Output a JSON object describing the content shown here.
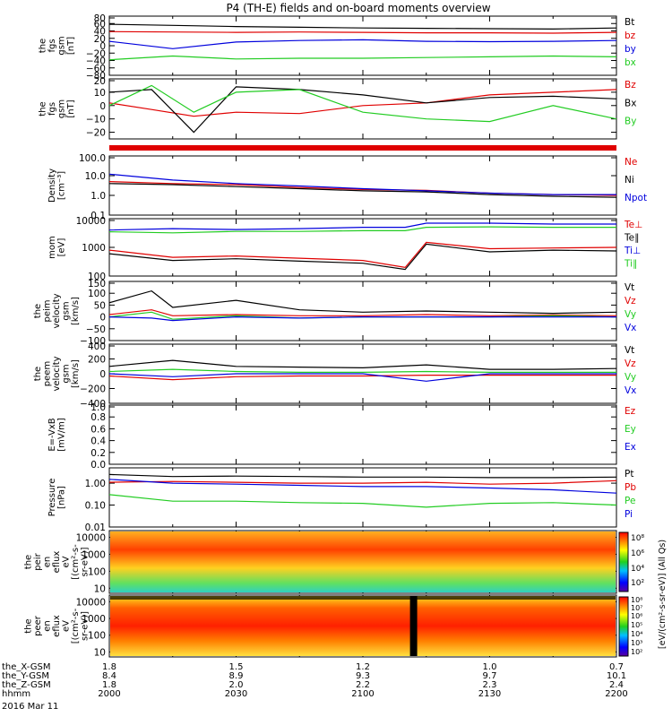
{
  "title": "P4 (TH-E) fields and on-board moments overview",
  "footer": {
    "rows": [
      {
        "label": "the_X-GSM",
        "values": [
          "1.8",
          "1.5",
          "1.2",
          "1.0",
          "0.7"
        ]
      },
      {
        "label": "the_Y-GSM",
        "values": [
          "8.4",
          "8.9",
          "9.3",
          "9.7",
          "10.1"
        ]
      },
      {
        "label": "the_Z-GSM",
        "values": [
          "1.8",
          "2.0",
          "2.2",
          "2.3",
          "2.4"
        ]
      },
      {
        "label": "hhmm",
        "values": [
          "2000",
          "2030",
          "2100",
          "2130",
          "2200"
        ]
      }
    ],
    "date": "2016 Mar 11"
  },
  "colorbar_label": "[eV/(cm²-s-sr-eV)] (All Qs)",
  "colorbar_ticks": [
    "10⁸",
    "10⁶",
    "10⁴",
    "10²",
    "10⁸",
    "10⁷",
    "10⁶",
    "10⁵",
    "10⁴",
    "10³",
    "10²"
  ],
  "colors": {
    "black": "#000000",
    "red": "#e00000",
    "green": "#22cc22",
    "blue": "#0000dd"
  },
  "chart_data": [
    {
      "type": "line",
      "ylabel": [
        "the",
        "fgs",
        "gsm",
        "[nT]"
      ],
      "yticks": [
        "80",
        "60",
        "40",
        "20",
        "0",
        "−20",
        "−40",
        "−60",
        "−80"
      ],
      "ylim": [
        -80,
        80
      ],
      "legend": [
        "Bt",
        "bz",
        "by",
        "bx"
      ],
      "series": [
        {
          "name": "Bt",
          "color": "black",
          "x": [
            2000,
            2015,
            2030,
            2045,
            2100,
            2115,
            2130,
            2145,
            2200
          ],
          "y": [
            58,
            55,
            52,
            50,
            48,
            47,
            46,
            45,
            48
          ]
        },
        {
          "name": "bz",
          "color": "red",
          "x": [
            2000,
            2015,
            2030,
            2045,
            2100,
            2115,
            2130,
            2145,
            2200
          ],
          "y": [
            38,
            37,
            36,
            37,
            36,
            35,
            35,
            34,
            36
          ]
        },
        {
          "name": "by",
          "color": "blue",
          "x": [
            2000,
            2015,
            2030,
            2045,
            2100,
            2115,
            2130,
            2145,
            2200
          ],
          "y": [
            12,
            -8,
            10,
            14,
            16,
            12,
            11,
            12,
            14
          ]
        },
        {
          "name": "bx",
          "color": "green",
          "x": [
            2000,
            2015,
            2030,
            2045,
            2100,
            2115,
            2130,
            2145,
            2200
          ],
          "y": [
            -38,
            -28,
            -36,
            -34,
            -34,
            -32,
            -30,
            -28,
            -30
          ]
        }
      ]
    },
    {
      "type": "line",
      "ylabel": [
        "the",
        "fgs",
        "gsm",
        "[nT]"
      ],
      "yticks": [
        "20",
        "10",
        "0",
        "−10",
        "−20"
      ],
      "ylim": [
        -25,
        20
      ],
      "legend": [
        "Bz",
        "Bx",
        "By"
      ],
      "series": [
        {
          "name": "Bz",
          "color": "red",
          "x": [
            2000,
            2010,
            2020,
            2030,
            2045,
            2100,
            2115,
            2130,
            2145,
            2200
          ],
          "y": [
            2,
            -3,
            -8,
            -5,
            -6,
            0,
            2,
            8,
            10,
            12
          ]
        },
        {
          "name": "Bx",
          "color": "black",
          "x": [
            2000,
            2010,
            2020,
            2030,
            2045,
            2100,
            2115,
            2130,
            2145,
            2200
          ],
          "y": [
            10,
            12,
            -20,
            14,
            12,
            8,
            2,
            6,
            7,
            5
          ]
        },
        {
          "name": "By",
          "color": "green",
          "x": [
            2000,
            2010,
            2020,
            2030,
            2045,
            2100,
            2115,
            2130,
            2145,
            2200
          ],
          "y": [
            0,
            15,
            -5,
            10,
            12,
            -5,
            -10,
            -12,
            0,
            -10
          ]
        }
      ]
    },
    {
      "type": "line",
      "ylabel": [
        "Density",
        "[cm⁻³]"
      ],
      "yticks": [
        "100.0",
        "10.0",
        "1.0",
        "0.1"
      ],
      "ylim": [
        0.1,
        100
      ],
      "log": true,
      "legend": [
        "Ne",
        "Ni",
        "Npot"
      ],
      "series": [
        {
          "name": "Ne",
          "color": "red",
          "x": [
            2000,
            2015,
            2030,
            2045,
            2100,
            2115,
            2130,
            2145,
            2200
          ],
          "y": [
            5,
            4,
            3.5,
            2.5,
            2,
            1.8,
            1.3,
            1.1,
            1
          ]
        },
        {
          "name": "Ni",
          "color": "black",
          "x": [
            2000,
            2015,
            2030,
            2045,
            2100,
            2115,
            2130,
            2145,
            2200
          ],
          "y": [
            4,
            3.5,
            2.8,
            2.2,
            1.7,
            1.5,
            1.1,
            0.9,
            0.8
          ]
        },
        {
          "name": "Npot",
          "color": "blue",
          "x": [
            2000,
            2015,
            2030,
            2045,
            2100,
            2115,
            2130,
            2145,
            2200
          ],
          "y": [
            12,
            6,
            4,
            3,
            2.2,
            1.7,
            1.3,
            1.1,
            1.1
          ]
        }
      ]
    },
    {
      "type": "line",
      "ylabel": [
        "mom",
        "[eV]"
      ],
      "yticks": [
        "10000",
        "1000",
        "100"
      ],
      "ylim": [
        100,
        10000
      ],
      "log": true,
      "legend": [
        "Te⊥",
        "Te∥",
        "Ti⊥",
        "Ti∥"
      ],
      "series": [
        {
          "name": "Te⊥",
          "color": "red",
          "x": [
            2000,
            2015,
            2030,
            2045,
            2100,
            2110,
            2115,
            2130,
            2145,
            2200
          ],
          "y": [
            800,
            450,
            500,
            420,
            350,
            200,
            1500,
            900,
            950,
            1000
          ]
        },
        {
          "name": "Te∥",
          "color": "black",
          "x": [
            2000,
            2015,
            2030,
            2045,
            2100,
            2110,
            2115,
            2130,
            2145,
            2200
          ],
          "y": [
            600,
            350,
            400,
            330,
            280,
            170,
            1300,
            700,
            800,
            750
          ]
        },
        {
          "name": "Ti⊥",
          "color": "blue",
          "x": [
            2000,
            2015,
            2030,
            2045,
            2100,
            2110,
            2115,
            2130,
            2145,
            2200
          ],
          "y": [
            4000,
            4500,
            4200,
            4500,
            5000,
            5000,
            7000,
            7000,
            6500,
            6500
          ]
        },
        {
          "name": "Ti∥",
          "color": "green",
          "x": [
            2000,
            2015,
            2030,
            2045,
            2100,
            2110,
            2115,
            2130,
            2145,
            2200
          ],
          "y": [
            3500,
            3200,
            3600,
            3600,
            3800,
            3800,
            5000,
            5200,
            5000,
            5000
          ]
        }
      ]
    },
    {
      "type": "line",
      "ylabel": [
        "the",
        "peim",
        "velocity",
        "gsm",
        "[km/s]"
      ],
      "yticks": [
        "150",
        "100",
        "50",
        "0",
        "−50",
        "−100"
      ],
      "ylim": [
        -100,
        150
      ],
      "legend": [
        "Vt",
        "Vz",
        "Vy",
        "Vx"
      ],
      "series": [
        {
          "name": "Vt",
          "color": "black",
          "x": [
            2000,
            2010,
            2015,
            2030,
            2045,
            2100,
            2115,
            2130,
            2145,
            2200
          ],
          "y": [
            60,
            110,
            40,
            70,
            30,
            20,
            25,
            20,
            15,
            20
          ]
        },
        {
          "name": "Vz",
          "color": "red",
          "x": [
            2000,
            2010,
            2015,
            2030,
            2045,
            2100,
            2115,
            2130,
            2145,
            2200
          ],
          "y": [
            10,
            30,
            5,
            10,
            5,
            5,
            10,
            5,
            8,
            5
          ]
        },
        {
          "name": "Vy",
          "color": "green",
          "x": [
            2000,
            2010,
            2015,
            2030,
            2045,
            2100,
            2115,
            2130,
            2145,
            2200
          ],
          "y": [
            0,
            20,
            -10,
            5,
            -5,
            0,
            0,
            0,
            5,
            0
          ]
        },
        {
          "name": "Vx",
          "color": "blue",
          "x": [
            2000,
            2010,
            2015,
            2030,
            2045,
            2100,
            2115,
            2130,
            2145,
            2200
          ],
          "y": [
            0,
            -5,
            -15,
            0,
            -5,
            0,
            0,
            0,
            0,
            0
          ]
        }
      ]
    },
    {
      "type": "line",
      "ylabel": [
        "the",
        "peem",
        "velocity",
        "gsm",
        "[km/s]"
      ],
      "yticks": [
        "400",
        "200",
        "0",
        "−200",
        "−400"
      ],
      "ylim": [
        -400,
        400
      ],
      "legend": [
        "Vt",
        "Vz",
        "Vy",
        "Vx"
      ],
      "series": [
        {
          "name": "Vt",
          "color": "black",
          "x": [
            2000,
            2015,
            2030,
            2045,
            2100,
            2115,
            2130,
            2145,
            2200
          ],
          "y": [
            100,
            180,
            100,
            90,
            80,
            120,
            60,
            60,
            70
          ]
        },
        {
          "name": "Vz",
          "color": "red",
          "x": [
            2000,
            2015,
            2030,
            2045,
            2100,
            2115,
            2130,
            2145,
            2200
          ],
          "y": [
            -30,
            -80,
            -40,
            -30,
            -30,
            -20,
            -20,
            -20,
            -20
          ]
        },
        {
          "name": "Vy",
          "color": "green",
          "x": [
            2000,
            2015,
            2030,
            2045,
            2100,
            2115,
            2130,
            2145,
            2200
          ],
          "y": [
            30,
            60,
            30,
            20,
            20,
            30,
            20,
            20,
            20
          ]
        },
        {
          "name": "Vx",
          "color": "blue",
          "x": [
            2000,
            2015,
            2030,
            2045,
            2100,
            2115,
            2130,
            2145,
            2200
          ],
          "y": [
            0,
            -40,
            0,
            0,
            0,
            -100,
            0,
            0,
            0
          ]
        }
      ]
    },
    {
      "type": "line",
      "ylabel": [
        "E=-VxB",
        "[mV/m]"
      ],
      "yticks": [
        "1.0",
        "0.8",
        "0.6",
        "0.4",
        "0.2",
        "0.0"
      ],
      "ylim": [
        0,
        1
      ],
      "legend": [
        "Ez",
        "Ey",
        "Ex"
      ],
      "series": []
    },
    {
      "type": "line",
      "ylabel": [
        "Pressure",
        "[nPa]"
      ],
      "yticks": [
        "1.00",
        "0.10",
        "0.01"
      ],
      "ylim": [
        0.01,
        5
      ],
      "log": true,
      "legend": [
        "Pt",
        "Pb",
        "Pe",
        "Pi"
      ],
      "series": [
        {
          "name": "Pt",
          "color": "black",
          "x": [
            2000,
            2015,
            2030,
            2045,
            2100,
            2115,
            2130,
            2145,
            2200
          ],
          "y": [
            2.5,
            2.0,
            2.1,
            2.0,
            1.9,
            1.9,
            1.8,
            1.8,
            1.9
          ]
        },
        {
          "name": "Pb",
          "color": "red",
          "x": [
            2000,
            2015,
            2030,
            2045,
            2100,
            2115,
            2130,
            2145,
            2200
          ],
          "y": [
            1.1,
            1.2,
            1.1,
            1.0,
            1.0,
            1.1,
            0.9,
            1.0,
            1.3
          ]
        },
        {
          "name": "Pe",
          "color": "green",
          "x": [
            2000,
            2015,
            2030,
            2045,
            2100,
            2115,
            2130,
            2145,
            2200
          ],
          "y": [
            0.3,
            0.15,
            0.15,
            0.13,
            0.12,
            0.08,
            0.12,
            0.13,
            0.1
          ]
        },
        {
          "name": "Pi",
          "color": "blue",
          "x": [
            2000,
            2015,
            2030,
            2045,
            2100,
            2115,
            2130,
            2145,
            2200
          ],
          "y": [
            1.5,
            1.0,
            0.9,
            0.8,
            0.7,
            0.7,
            0.6,
            0.5,
            0.35
          ]
        }
      ]
    },
    {
      "type": "heatmap",
      "ylabel": [
        "the",
        "peir",
        "en",
        "eflux",
        "eV",
        "[(cm²-s-",
        "sr-eV)]"
      ],
      "yticks": [
        "10000",
        "1000",
        "100",
        "10"
      ],
      "ylim": [
        5,
        25000
      ],
      "log": true
    },
    {
      "type": "heatmap",
      "ylabel": [
        "the",
        "peer",
        "en",
        "eflux",
        "eV",
        "[(cm²-s-",
        "sr-eV)]"
      ],
      "yticks": [
        "10000",
        "1000",
        "100",
        "10"
      ],
      "ylim": [
        5,
        25000
      ],
      "log": true
    }
  ]
}
